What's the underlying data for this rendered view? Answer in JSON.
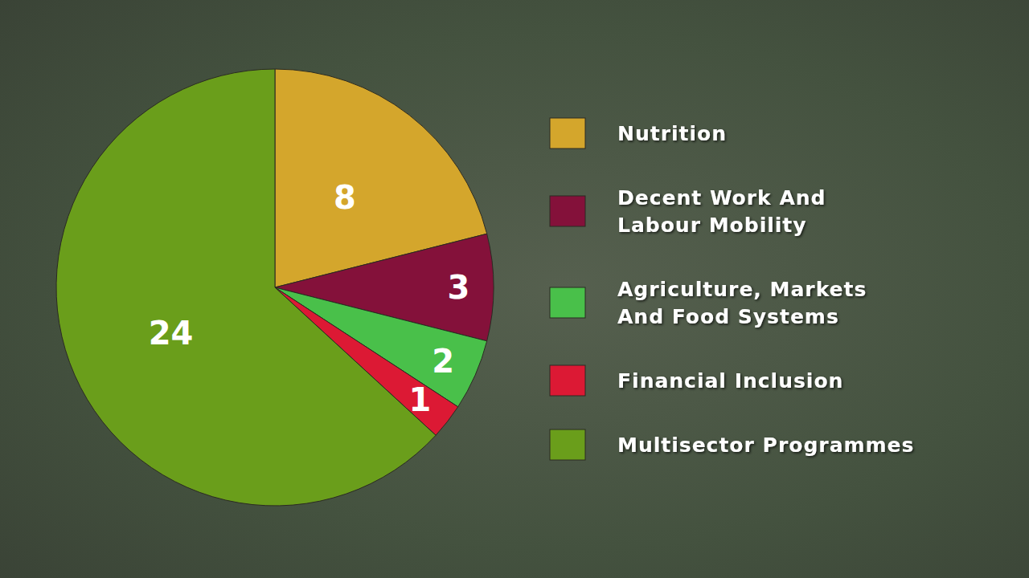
{
  "chart_data": {
    "type": "pie",
    "categories": [
      "Nutrition",
      "Decent Work And Labour Mobility",
      "Agriculture, Markets And Food Systems",
      "Financial Inclusion",
      "Multisector Programmes"
    ],
    "values": [
      8,
      3,
      2,
      1,
      24
    ],
    "colors": [
      "#d4a62c",
      "#84113a",
      "#49c04a",
      "#dc1934",
      "#6a9e1b"
    ],
    "data_labels": true,
    "legend": "right"
  }
}
